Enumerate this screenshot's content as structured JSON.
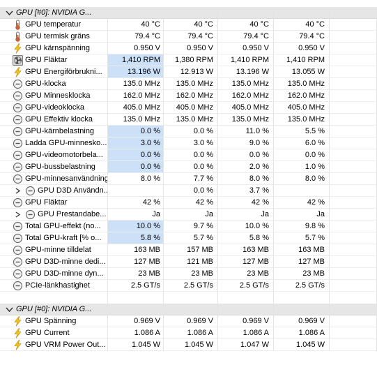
{
  "colors": {
    "selection": "#cce0f8",
    "header_bg": "#e6e6e6",
    "gridline": "#e4e4e4"
  },
  "sections": [
    {
      "title": "GPU [#0]: NVIDIA G...",
      "icon": "chevron-down-icon",
      "rows": [
        {
          "label": "GPU temperatur",
          "icon": "thermometer-icon",
          "values": [
            "40 °C",
            "40 °C",
            "40 °C",
            "40 °C"
          ],
          "selected": false
        },
        {
          "label": "GPU termisk gräns",
          "icon": "thermometer-icon",
          "values": [
            "79.4 °C",
            "79.4 °C",
            "79.4 °C",
            "79.4 °C"
          ],
          "selected": false
        },
        {
          "label": "GPU kärnspänning",
          "icon": "lightning-icon",
          "values": [
            "0.950 V",
            "0.950 V",
            "0.950 V",
            "0.950 V"
          ],
          "selected": false
        },
        {
          "label": "GPU Fläktar",
          "icon": "fan-icon",
          "values": [
            "1,410 RPM",
            "1,380 RPM",
            "1,410 RPM",
            "1,410 RPM"
          ],
          "selected": true
        },
        {
          "label": "GPU Energiförbrukni...",
          "icon": "lightning-icon",
          "values": [
            "13.196 W",
            "12.913 W",
            "13.196 W",
            "13.055 W"
          ],
          "selected": true
        },
        {
          "label": "GPU-klocka",
          "icon": "clock-icon",
          "values": [
            "135.0 MHz",
            "135.0 MHz",
            "135.0 MHz",
            "135.0 MHz"
          ],
          "selected": false
        },
        {
          "label": "GPU Minnesklocka",
          "icon": "clock-icon",
          "values": [
            "162.0 MHz",
            "162.0 MHz",
            "162.0 MHz",
            "162.0 MHz"
          ],
          "selected": false
        },
        {
          "label": "GPU-videoklocka",
          "icon": "clock-icon",
          "values": [
            "405.0 MHz",
            "405.0 MHz",
            "405.0 MHz",
            "405.0 MHz"
          ],
          "selected": false
        },
        {
          "label": "GPU Effektiv klocka",
          "icon": "clock-icon",
          "values": [
            "135.0 MHz",
            "135.0 MHz",
            "135.0 MHz",
            "135.0 MHz"
          ],
          "selected": false
        },
        {
          "label": "GPU-kärnbelastning",
          "icon": "clock-icon",
          "values": [
            "0.0 %",
            "0.0 %",
            "11.0 %",
            "5.5 %"
          ],
          "selected": true
        },
        {
          "label": "Ladda GPU-minnesko...",
          "icon": "clock-icon",
          "values": [
            "3.0 %",
            "3.0 %",
            "9.0 %",
            "6.0 %"
          ],
          "selected": true
        },
        {
          "label": "GPU-videomotorbela...",
          "icon": "clock-icon",
          "values": [
            "0.0 %",
            "0.0 %",
            "0.0 %",
            "0.0 %"
          ],
          "selected": true
        },
        {
          "label": "GPU-bussbelastning",
          "icon": "clock-icon",
          "values": [
            "0.0 %",
            "0.0 %",
            "2.0 %",
            "1.0 %"
          ],
          "selected": true
        },
        {
          "label": "GPU-minnesanvändning",
          "icon": "clock-icon",
          "values": [
            "8.0 %",
            "7.7 %",
            "8.0 %",
            "8.0 %"
          ],
          "selected": false
        },
        {
          "label": "GPU D3D Användn...",
          "icon": "clock-icon",
          "chevron": true,
          "values": [
            "",
            "0.0 %",
            "3.7 %",
            ""
          ],
          "selected": false
        },
        {
          "label": "GPU Fläktar",
          "icon": "clock-icon",
          "values": [
            "42 %",
            "42 %",
            "42 %",
            "42 %"
          ],
          "selected": false
        },
        {
          "label": "GPU Prestandabe...",
          "icon": "clock-icon",
          "chevron": true,
          "values": [
            "Ja",
            "Ja",
            "Ja",
            "Ja"
          ],
          "selected": false
        },
        {
          "label": "Total GPU-effekt (no...",
          "icon": "clock-icon",
          "values": [
            "10.0 %",
            "9.7 %",
            "10.0 %",
            "9.8 %"
          ],
          "selected": true
        },
        {
          "label": "Total GPU-kraft [% o...",
          "icon": "clock-icon",
          "values": [
            "5.8 %",
            "5.7 %",
            "5.8 %",
            "5.7 %"
          ],
          "selected": true
        },
        {
          "label": "GPU-minne tilldelat",
          "icon": "clock-icon",
          "values": [
            "163 MB",
            "157 MB",
            "163 MB",
            "163 MB"
          ],
          "selected": false
        },
        {
          "label": "GPU D3D-minne dedi...",
          "icon": "clock-icon",
          "values": [
            "127 MB",
            "121 MB",
            "127 MB",
            "127 MB"
          ],
          "selected": false
        },
        {
          "label": "GPU D3D-minne dyn...",
          "icon": "clock-icon",
          "values": [
            "23 MB",
            "23 MB",
            "23 MB",
            "23 MB"
          ],
          "selected": false
        },
        {
          "label": "PCIe-länkhastighet",
          "icon": "clock-icon",
          "values": [
            "2.5 GT/s",
            "2.5 GT/s",
            "2.5 GT/s",
            "2.5 GT/s"
          ],
          "selected": false
        }
      ]
    },
    {
      "title": "GPU [#0]: NVIDIA G...",
      "icon": "chevron-down-icon",
      "rows": [
        {
          "label": "GPU Spänning",
          "icon": "lightning-icon",
          "values": [
            "0.969 V",
            "0.969 V",
            "0.969 V",
            "0.969 V"
          ],
          "selected": false
        },
        {
          "label": "GPU Current",
          "icon": "lightning-icon",
          "values": [
            "1.086 A",
            "1.086 A",
            "1.086 A",
            "1.086 A"
          ],
          "selected": false
        },
        {
          "label": "GPU VRM Power Out...",
          "icon": "lightning-icon",
          "values": [
            "1.045 W",
            "1.045 W",
            "1.047 W",
            "1.045 W"
          ],
          "selected": false
        }
      ]
    }
  ]
}
